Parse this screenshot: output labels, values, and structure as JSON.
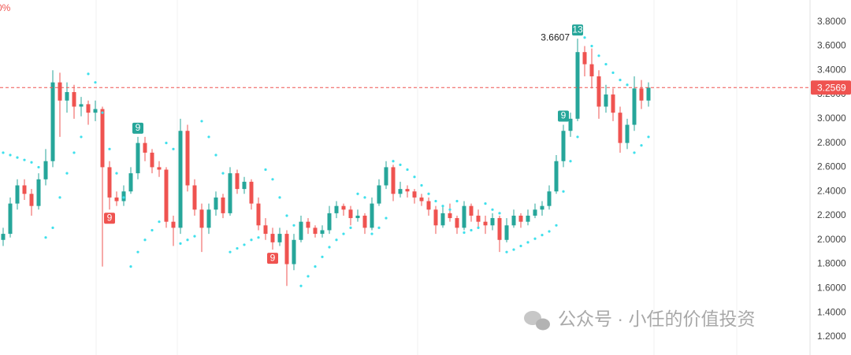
{
  "chart_data": {
    "type": "candlestick",
    "corner_label": "0%",
    "watermark": "公众号 · 小任的价值投资",
    "up_color": "#26a69a",
    "down_color": "#ef5350",
    "sar_color": "#3fe0ec",
    "ylim": [
      1.05,
      3.98
    ],
    "yticks": [
      {
        "value": 1.2,
        "label": "1.2000"
      },
      {
        "value": 1.4,
        "label": "1.4000"
      },
      {
        "value": 1.6,
        "label": "1.6000"
      },
      {
        "value": 1.8,
        "label": "1.8000"
      },
      {
        "value": 2.0,
        "label": "2.0000"
      },
      {
        "value": 2.2,
        "label": "2.2000"
      },
      {
        "value": 2.4,
        "label": "2.4000"
      },
      {
        "value": 2.6,
        "label": "2.6000"
      },
      {
        "value": 2.8,
        "label": "2.8000"
      },
      {
        "value": 3.0,
        "label": "3.0000"
      },
      {
        "value": 3.2,
        "label": "3.2000"
      },
      {
        "value": 3.4,
        "label": "3.4000"
      },
      {
        "value": 3.6,
        "label": "3.6000"
      },
      {
        "value": 3.8,
        "label": "3.8000"
      }
    ],
    "grid": false,
    "candles": [
      [
        2.0,
        2.1,
        1.95,
        2.05
      ],
      [
        2.05,
        2.35,
        2.02,
        2.3
      ],
      [
        2.3,
        2.5,
        2.25,
        2.45
      ],
      [
        2.45,
        2.5,
        2.33,
        2.38
      ],
      [
        2.38,
        2.42,
        2.2,
        2.28
      ],
      [
        2.28,
        2.55,
        2.25,
        2.5
      ],
      [
        2.5,
        2.75,
        2.45,
        2.65
      ],
      [
        2.65,
        3.4,
        2.6,
        3.3
      ],
      [
        3.3,
        3.38,
        2.85,
        3.15
      ],
      [
        3.15,
        3.3,
        3.05,
        3.22
      ],
      [
        3.22,
        3.28,
        3.0,
        3.1
      ],
      [
        3.1,
        3.18,
        3.02,
        3.12
      ],
      [
        3.12,
        3.15,
        2.95,
        3.05
      ],
      [
        3.05,
        3.15,
        2.98,
        3.08
      ],
      [
        3.08,
        3.1,
        1.78,
        2.6
      ],
      [
        2.6,
        2.65,
        2.25,
        2.35
      ],
      [
        2.35,
        2.4,
        2.28,
        2.32
      ],
      [
        2.32,
        2.45,
        2.28,
        2.4
      ],
      [
        2.4,
        2.6,
        2.38,
        2.55
      ],
      [
        2.55,
        2.85,
        2.5,
        2.8
      ],
      [
        2.8,
        2.85,
        2.65,
        2.72
      ],
      [
        2.72,
        2.75,
        2.55,
        2.6
      ],
      [
        2.6,
        2.65,
        2.52,
        2.58
      ],
      [
        2.58,
        2.6,
        2.1,
        2.15
      ],
      [
        2.15,
        2.2,
        1.95,
        2.1
      ],
      [
        2.1,
        3.0,
        2.05,
        2.9
      ],
      [
        2.9,
        2.95,
        2.4,
        2.45
      ],
      [
        2.45,
        2.5,
        2.2,
        2.25
      ],
      [
        2.25,
        2.3,
        1.9,
        2.1
      ],
      [
        2.1,
        2.3,
        2.05,
        2.25
      ],
      [
        2.25,
        2.4,
        2.2,
        2.35
      ],
      [
        2.35,
        2.38,
        2.18,
        2.22
      ],
      [
        2.22,
        2.6,
        2.2,
        2.55
      ],
      [
        2.55,
        2.58,
        2.38,
        2.42
      ],
      [
        2.42,
        2.52,
        2.38,
        2.48
      ],
      [
        2.48,
        2.5,
        2.25,
        2.3
      ],
      [
        2.3,
        2.35,
        2.08,
        2.12
      ],
      [
        2.12,
        2.18,
        2.0,
        2.05
      ],
      [
        2.05,
        2.1,
        1.92,
        1.98
      ],
      [
        1.98,
        2.1,
        1.95,
        2.05
      ],
      [
        2.05,
        2.08,
        1.62,
        1.8
      ],
      [
        1.8,
        2.05,
        1.75,
        2.0
      ],
      [
        2.0,
        2.2,
        1.98,
        2.15
      ],
      [
        2.15,
        2.18,
        2.05,
        2.1
      ],
      [
        2.1,
        2.12,
        2.02,
        2.05
      ],
      [
        2.05,
        2.12,
        2.02,
        2.08
      ],
      [
        2.08,
        2.28,
        2.05,
        2.22
      ],
      [
        2.22,
        2.32,
        2.18,
        2.28
      ],
      [
        2.28,
        2.3,
        2.2,
        2.25
      ],
      [
        2.25,
        2.28,
        2.12,
        2.18
      ],
      [
        2.18,
        2.25,
        2.15,
        2.2
      ],
      [
        2.2,
        2.22,
        2.05,
        2.1
      ],
      [
        2.1,
        2.35,
        2.08,
        2.3
      ],
      [
        2.3,
        2.5,
        2.28,
        2.45
      ],
      [
        2.45,
        2.65,
        2.42,
        2.6
      ],
      [
        2.6,
        2.62,
        2.32,
        2.38
      ],
      [
        2.38,
        2.48,
        2.35,
        2.42
      ],
      [
        2.42,
        2.45,
        2.35,
        2.4
      ],
      [
        2.4,
        2.42,
        2.3,
        2.35
      ],
      [
        2.35,
        2.38,
        2.28,
        2.32
      ],
      [
        2.32,
        2.35,
        2.2,
        2.25
      ],
      [
        2.25,
        2.28,
        2.05,
        2.12
      ],
      [
        2.12,
        2.28,
        2.1,
        2.22
      ],
      [
        2.22,
        2.3,
        2.15,
        2.18
      ],
      [
        2.18,
        2.2,
        2.05,
        2.1
      ],
      [
        2.1,
        2.32,
        2.08,
        2.28
      ],
      [
        2.28,
        2.3,
        2.15,
        2.2
      ],
      [
        2.2,
        2.25,
        2.1,
        2.15
      ],
      [
        2.15,
        2.2,
        2.05,
        2.12
      ],
      [
        2.12,
        2.22,
        2.08,
        2.18
      ],
      [
        2.18,
        2.2,
        1.9,
        2.0
      ],
      [
        2.0,
        2.18,
        1.98,
        2.12
      ],
      [
        2.12,
        2.25,
        2.1,
        2.2
      ],
      [
        2.2,
        2.22,
        2.1,
        2.15
      ],
      [
        2.15,
        2.25,
        2.12,
        2.2
      ],
      [
        2.2,
        2.3,
        2.18,
        2.25
      ],
      [
        2.25,
        2.32,
        2.2,
        2.28
      ],
      [
        2.28,
        2.45,
        2.25,
        2.4
      ],
      [
        2.4,
        2.7,
        2.38,
        2.65
      ],
      [
        2.65,
        2.95,
        2.6,
        2.9
      ],
      [
        2.9,
        3.05,
        2.85,
        3.0
      ],
      [
        3.0,
        3.6607,
        2.98,
        3.55
      ],
      [
        3.55,
        3.6,
        3.35,
        3.45
      ],
      [
        3.45,
        3.58,
        3.25,
        3.35
      ],
      [
        3.35,
        3.4,
        3.0,
        3.1
      ],
      [
        3.1,
        3.28,
        3.05,
        3.2
      ],
      [
        3.2,
        3.25,
        2.98,
        3.05
      ],
      [
        3.05,
        3.1,
        2.72,
        2.8
      ],
      [
        2.8,
        3.0,
        2.75,
        2.95
      ],
      [
        2.95,
        3.35,
        2.9,
        3.25
      ],
      [
        3.25,
        3.32,
        3.08,
        3.15
      ],
      [
        3.15,
        3.3,
        3.1,
        3.2569
      ]
    ],
    "sar": [
      2.72,
      2.7,
      2.68,
      2.66,
      2.64,
      2.6,
      2.02,
      2.1,
      2.35,
      2.55,
      2.72,
      2.85,
      3.37,
      3.3,
      3.05,
      2.75,
      2.55,
      2.35,
      1.78,
      1.9,
      2.0,
      2.08,
      2.15,
      2.8,
      2.75,
      1.97,
      2.0,
      2.03,
      2.98,
      2.85,
      2.7,
      2.55,
      1.9,
      1.93,
      1.96,
      2.0,
      2.02,
      2.58,
      2.5,
      2.35,
      2.2,
      2.12,
      1.62,
      1.7,
      1.78,
      1.86,
      1.94,
      2.0,
      2.05,
      2.1,
      2.38,
      2.35,
      2.05,
      2.1,
      2.18,
      2.65,
      2.62,
      2.58,
      2.52,
      2.45,
      2.38,
      2.32,
      2.28,
      2.25,
      2.32,
      2.06,
      2.08,
      2.1,
      2.3,
      2.25,
      2.22,
      1.9,
      1.92,
      1.95,
      1.98,
      2.01,
      2.04,
      2.07,
      2.12,
      2.4,
      2.65,
      2.85,
      3.67,
      3.6,
      3.52,
      3.45,
      3.38,
      3.32,
      3.28,
      2.72,
      2.78,
      2.85
    ],
    "sell_setup": [
      null,
      null,
      null,
      null,
      null,
      null,
      null,
      null,
      null,
      null,
      null,
      null,
      null,
      null,
      null,
      null,
      null,
      null,
      null,
      "9",
      null,
      null,
      null,
      null,
      null,
      null,
      null,
      null,
      null,
      null,
      null,
      null,
      null,
      null,
      null,
      null,
      null,
      null,
      null,
      null,
      null,
      null,
      null,
      null,
      null,
      null,
      null,
      null,
      null,
      null,
      null,
      null,
      null,
      null,
      null,
      null,
      null,
      null,
      null,
      null,
      null,
      null,
      null,
      null,
      null,
      null,
      null,
      null,
      null,
      null,
      null,
      null,
      null,
      null,
      null,
      null,
      null,
      null,
      null,
      "9",
      null,
      "13",
      null,
      null,
      null,
      null,
      null,
      null,
      null,
      null,
      null,
      null
    ],
    "buy_setup": [
      null,
      null,
      null,
      null,
      null,
      null,
      null,
      null,
      null,
      null,
      null,
      null,
      null,
      null,
      null,
      "9",
      null,
      null,
      null,
      null,
      null,
      null,
      null,
      null,
      null,
      null,
      null,
      null,
      null,
      null,
      null,
      null,
      null,
      null,
      null,
      null,
      null,
      null,
      "9",
      null,
      null,
      null,
      null,
      null,
      null,
      null,
      null,
      null,
      null,
      null,
      null,
      null,
      null,
      null,
      null,
      null,
      null,
      null,
      null,
      null,
      null,
      null,
      null,
      null,
      null,
      null,
      null,
      null,
      null,
      null,
      null,
      null,
      null,
      null,
      null,
      null,
      null,
      null,
      null,
      null,
      null,
      null,
      null,
      null,
      null,
      null,
      null,
      null,
      null,
      null,
      null,
      null
    ]
  }
}
